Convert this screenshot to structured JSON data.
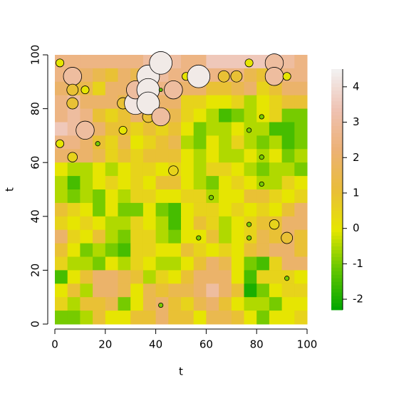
{
  "chart_data": {
    "type": "image",
    "xlabel": "t",
    "ylabel": "t",
    "xlim": [
      0,
      100
    ],
    "ylim": [
      0,
      100
    ],
    "xticks": [
      0,
      20,
      40,
      60,
      80,
      100
    ],
    "yticks": [
      0,
      20,
      40,
      60,
      80,
      100
    ],
    "zlim": [
      -2.3,
      4.5
    ],
    "colorbar_ticks": [
      -2,
      -1,
      0,
      1,
      2,
      3,
      4
    ],
    "palette": [
      "#00a600",
      "#63c600",
      "#e6e600",
      "#e9bd3a",
      "#ecb176",
      "#efc2b3",
      "#f2f2f2"
    ],
    "z": [
      [
        2.5,
        2.5,
        2.5,
        2.5,
        2.5,
        2.5,
        2.5,
        3,
        2.5,
        3,
        2.5,
        2.5,
        3.5,
        3.5,
        3.5,
        3.5,
        3.5,
        3.5,
        3,
        2.5
      ],
      [
        2.5,
        2,
        2,
        1.5,
        1,
        2,
        1.5,
        2,
        3,
        2.5,
        2.5,
        0,
        2.5,
        2.5,
        2.5,
        1.5,
        1,
        2.5,
        2.5,
        2.5
      ],
      [
        2,
        1,
        1.5,
        0.5,
        2,
        2,
        3,
        3,
        2.5,
        2,
        2,
        2,
        1,
        1,
        1.5,
        2,
        0.5,
        1,
        2,
        2
      ],
      [
        2.5,
        3,
        2,
        2,
        2,
        1.5,
        0,
        1,
        2,
        2,
        0.5,
        0.5,
        0,
        0,
        0.5,
        -0.5,
        0,
        0.5,
        1,
        1
      ],
      [
        2.5,
        3,
        2.5,
        1,
        0.5,
        1,
        2,
        0,
        0.5,
        1.5,
        0.5,
        0,
        -0.5,
        -1.5,
        -1,
        -0.5,
        0,
        0.5,
        -1,
        -1
      ],
      [
        3.5,
        3,
        2,
        2,
        1,
        1,
        0.5,
        1,
        0.5,
        1,
        0,
        -1,
        -0.5,
        -0.5,
        0,
        -0.5,
        -0.5,
        -1.5,
        -1.5,
        -1
      ],
      [
        2.5,
        2.5,
        2,
        1,
        0.5,
        1.5,
        0,
        0.5,
        1,
        1.5,
        -0.5,
        -1,
        0,
        -0.5,
        0.5,
        -0.5,
        -1,
        -0.5,
        -1.5,
        -1
      ],
      [
        2,
        2,
        2,
        1.5,
        0.5,
        1,
        0.5,
        1,
        1,
        1,
        0,
        -0.5,
        0,
        -0.5,
        -0.5,
        0,
        -0.5,
        0,
        -1,
        -0.5
      ],
      [
        0,
        -0.5,
        -0.5,
        0,
        -0.5,
        0,
        0.5,
        0.5,
        0,
        0.5,
        0,
        -0.5,
        0.5,
        0.5,
        0,
        -0.5,
        -1,
        -0.5,
        -0.5,
        -1
      ],
      [
        -0.5,
        -1.5,
        -0.5,
        0,
        0.5,
        0,
        0.5,
        0,
        1,
        1,
        0,
        -0.5,
        -1,
        0,
        0.5,
        0,
        -0.5,
        -0.5,
        0.5,
        0
      ],
      [
        -0.5,
        -1,
        -0.5,
        -1,
        0,
        -0.5,
        0.5,
        0.5,
        0,
        0,
        0.5,
        0.5,
        -0.5,
        0,
        0,
        1,
        1,
        0.5,
        0,
        0.5
      ],
      [
        1,
        0.5,
        0,
        -1,
        0,
        -1,
        -1,
        0,
        -1,
        -1.5,
        0,
        0.5,
        0.5,
        0,
        0.5,
        0,
        0.5,
        0,
        1,
        2
      ],
      [
        0.5,
        0,
        0.5,
        0,
        -0.5,
        -0.5,
        0.5,
        0,
        -0.5,
        -1.5,
        0,
        1,
        0.5,
        -0.5,
        0,
        0.5,
        1,
        1,
        2,
        2
      ],
      [
        2,
        0.5,
        0,
        1,
        -0.5,
        -1,
        0.5,
        0.5,
        -0.5,
        -1,
        0,
        0,
        1,
        -0.5,
        0,
        0.5,
        1.5,
        1,
        2,
        1
      ],
      [
        1,
        0,
        -1,
        -0.5,
        -1,
        -1.5,
        0.5,
        0.5,
        0,
        0,
        1,
        0.5,
        0,
        0.5,
        0,
        1,
        1.5,
        2,
        2,
        1
      ],
      [
        0.5,
        -0.5,
        -0.5,
        -1,
        0,
        -0.5,
        0.5,
        0,
        -0.5,
        -0.5,
        0,
        1,
        2,
        1.5,
        0,
        -1,
        -1.5,
        0.5,
        2,
        2
      ],
      [
        -1.5,
        0,
        1,
        2,
        2,
        1.5,
        1,
        -0.5,
        0.5,
        0,
        1,
        2,
        2,
        2,
        0,
        -1.5,
        0.5,
        0.5,
        0.5,
        0
      ],
      [
        0,
        1,
        -0.5,
        2,
        2,
        1.5,
        0,
        1.5,
        1,
        1.5,
        1.5,
        2,
        3,
        2,
        1,
        -2,
        -1,
        0,
        0.5,
        0.5
      ],
      [
        0.5,
        -0.5,
        1,
        1,
        1.5,
        -1,
        0,
        1.5,
        2,
        1,
        0.5,
        1.5,
        2,
        1,
        0,
        -0.5,
        -0.5,
        -1,
        0,
        0
      ],
      [
        -1,
        -1,
        -0.5,
        1,
        0,
        0,
        1,
        1,
        2,
        1,
        1,
        0,
        1.5,
        1.5,
        1,
        0,
        -1,
        0,
        0,
        0.5
      ]
    ],
    "points": {
      "x": [
        2,
        7,
        7,
        12,
        7,
        12,
        2,
        7,
        17,
        27,
        27,
        32,
        32,
        37,
        37,
        37,
        37,
        42,
        47,
        42,
        52,
        57,
        67,
        72,
        77,
        87,
        87,
        92,
        82,
        77,
        82,
        82,
        62,
        47,
        77,
        87,
        92,
        77,
        57,
        92,
        42,
        42
      ],
      "y": [
        97,
        92,
        87,
        87,
        82,
        72,
        67,
        62,
        67,
        72,
        82,
        82,
        87,
        92,
        87,
        77,
        82,
        97,
        87,
        77,
        92,
        92,
        92,
        92,
        97,
        97,
        92,
        92,
        77,
        72,
        62,
        52,
        47,
        57,
        37,
        37,
        32,
        32,
        32,
        17,
        7,
        87
      ],
      "z": [
        0,
        3,
        1,
        0,
        1,
        3,
        0,
        0.5,
        -1,
        0,
        1,
        4.2,
        3,
        4.3,
        4.3,
        1,
        4.3,
        4.3,
        3,
        3,
        0,
        4.3,
        1,
        1,
        0,
        3,
        3,
        0,
        -1,
        -1,
        -1,
        -1,
        -1,
        0.5,
        -1,
        0.5,
        1,
        -1,
        -1,
        -1,
        -1,
        -1.3
      ]
    }
  }
}
